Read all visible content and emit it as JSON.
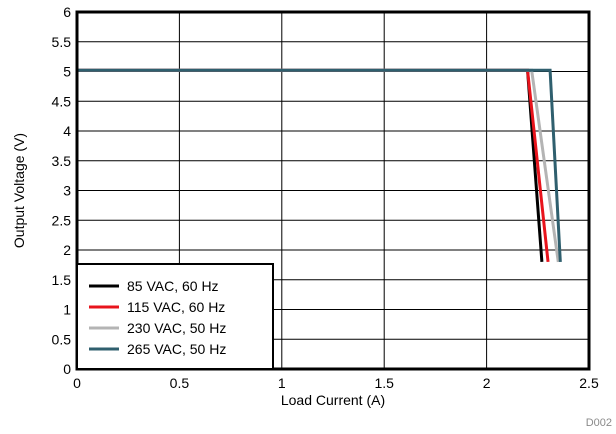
{
  "chart_data": {
    "type": "line",
    "xlabel": "Load Current (A)",
    "ylabel": "Output Voltage (V)",
    "xlim": [
      0,
      2.5
    ],
    "ylim": [
      0,
      6
    ],
    "xticks": [
      0,
      0.5,
      1,
      1.5,
      2,
      2.5
    ],
    "xtick_labels": [
      "0",
      "0.5",
      "1",
      "1.5",
      "2",
      "2.5"
    ],
    "yticks": [
      0,
      0.5,
      1,
      1.5,
      2,
      2.5,
      3,
      3.5,
      4,
      4.5,
      5,
      5.5,
      6
    ],
    "ytick_labels": [
      "0",
      "0.5",
      "1",
      "1.5",
      "2",
      "2.5",
      "3",
      "3.5",
      "4",
      "4.5",
      "5",
      "5.5",
      "6"
    ],
    "grid": true,
    "legend_position": "bottom-left",
    "figure_note": "D002",
    "series": [
      {
        "name": "85 VAC, 60 Hz",
        "color": "#000000",
        "x": [
          0,
          2.2,
          2.27
        ],
        "y": [
          5.02,
          5.02,
          1.8
        ]
      },
      {
        "name": "115 VAC, 60 Hz",
        "color": "#e8141c",
        "x": [
          0,
          2.2,
          2.3
        ],
        "y": [
          5.02,
          5.02,
          1.8
        ]
      },
      {
        "name": "230 VAC, 50 Hz",
        "color": "#b4b4b4",
        "x": [
          0,
          2.22,
          2.35
        ],
        "y": [
          5.02,
          5.02,
          1.8
        ]
      },
      {
        "name": "265 VAC, 50 Hz",
        "color": "#2f5f6e",
        "x": [
          0,
          2.31,
          2.36
        ],
        "y": [
          5.02,
          5.02,
          1.8
        ]
      }
    ]
  }
}
